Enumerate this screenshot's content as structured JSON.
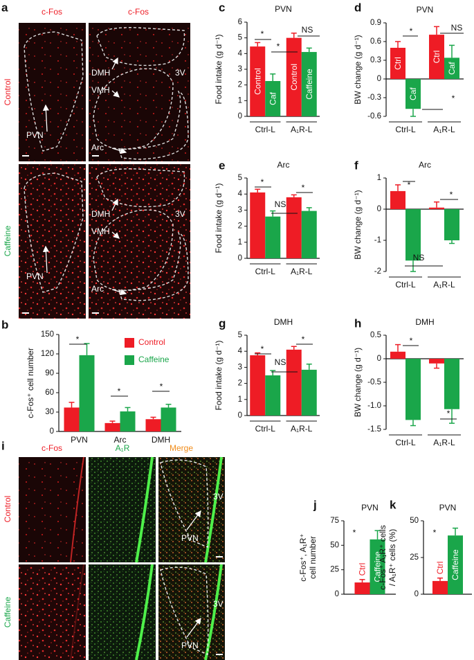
{
  "panel_a": {
    "panel": "a",
    "column_labels": [
      "c-Fos",
      "c-Fos"
    ],
    "row_labels": [
      "Control",
      "Caffeine"
    ],
    "images": [
      {
        "labels": [
          "PVN"
        ]
      },
      {
        "labels": [
          "DMH",
          "VMH",
          "3V",
          "Arc"
        ]
      },
      {
        "labels": [
          "PVN"
        ]
      },
      {
        "labels": [
          "DMH",
          "VMH",
          "3V",
          "Arc"
        ]
      }
    ]
  },
  "panel_i": {
    "panel": "i",
    "column_labels": [
      "c-Fos",
      "A₁R",
      "Merge"
    ],
    "row_labels": [
      "Control",
      "Caffeine"
    ],
    "merge_images": [
      {
        "labels": [
          "3V",
          "PVN"
        ]
      },
      {
        "labels": [
          "3V",
          "PVN"
        ]
      }
    ]
  },
  "chart_data": [
    {
      "type": "bar",
      "panel": "b",
      "ylabel": [
        "c-Fos⁺ cell number"
      ],
      "categories": [
        "PVN",
        "Arc",
        "DMH"
      ],
      "series": [
        {
          "name": "Control",
          "color": "#ee1c25",
          "values": [
            37,
            13,
            19
          ],
          "errors": [
            8,
            3,
            3
          ]
        },
        {
          "name": "Caffeine",
          "color": "#1aa64a",
          "values": [
            118,
            31,
            37
          ],
          "errors": [
            18,
            6,
            5
          ]
        }
      ],
      "ylim": [
        0,
        150
      ],
      "yticks": [
        0,
        30,
        60,
        90,
        120,
        150
      ],
      "annotations": [
        "*",
        "*",
        "*"
      ]
    },
    {
      "type": "bar",
      "panel": "c",
      "title": "PVN",
      "ylabel": [
        "Food intake (g d⁻¹)"
      ],
      "categories": [
        "Ctrl-L",
        "A₁R-L"
      ],
      "series": [
        {
          "color": "#ee1c25",
          "values": [
            4.45,
            5.0
          ],
          "errors": [
            0.25,
            0.3
          ],
          "bar_labels": [
            "Control",
            "Control"
          ]
        },
        {
          "color": "#1aa64a",
          "values": [
            2.25,
            4.1
          ],
          "errors": [
            0.45,
            0.25
          ],
          "bar_labels": [
            "Caf",
            "Caffeine"
          ]
        }
      ],
      "ylim": [
        0,
        6
      ],
      "yticks": [
        0,
        1,
        2,
        3,
        4,
        5,
        6
      ],
      "annotations": [
        "*",
        "*",
        "NS"
      ]
    },
    {
      "type": "bar",
      "panel": "d",
      "title": "PVN",
      "ylabel": [
        "BW change (g d⁻¹)"
      ],
      "categories": [
        "Ctrl-L",
        "A₁R-L"
      ],
      "series": [
        {
          "color": "#ee1c25",
          "values": [
            0.5,
            0.71
          ],
          "errors": [
            0.1,
            0.13
          ],
          "bar_labels": [
            "Ctrl",
            "Ctrl"
          ]
        },
        {
          "color": "#1aa64a",
          "values": [
            -0.48,
            0.34
          ],
          "errors": [
            0.12,
            0.2
          ],
          "bar_labels": [
            "Caf",
            "Caf"
          ]
        }
      ],
      "ylim": [
        -0.6,
        0.9
      ],
      "yticks": [
        -0.6,
        -0.3,
        0,
        0.3,
        0.6,
        0.9
      ],
      "annotations": [
        "*",
        "NS",
        "*"
      ]
    },
    {
      "type": "bar",
      "panel": "e",
      "title": "Arc",
      "ylabel": [
        "Food intake (g d⁻¹)"
      ],
      "categories": [
        "Ctrl-L",
        "A₁R-L"
      ],
      "series": [
        {
          "color": "#ee1c25",
          "values": [
            4.1,
            3.8
          ],
          "errors": [
            0.2,
            0.15
          ]
        },
        {
          "color": "#1aa64a",
          "values": [
            2.6,
            2.95
          ],
          "errors": [
            0.35,
            0.2
          ]
        }
      ],
      "ylim": [
        0,
        5
      ],
      "yticks": [
        0,
        1,
        2,
        3,
        4,
        5
      ],
      "annotations": [
        "*",
        "NS",
        "*"
      ]
    },
    {
      "type": "bar",
      "panel": "f",
      "title": "Arc",
      "ylabel": [
        "BW change (g d⁻¹)"
      ],
      "categories": [
        "Ctrl-L",
        "A₁R-L"
      ],
      "series": [
        {
          "color": "#ee1c25",
          "values": [
            0.58,
            0.05
          ],
          "errors": [
            0.2,
            0.18
          ]
        },
        {
          "color": "#1aa64a",
          "values": [
            -1.65,
            -1.0
          ],
          "errors": [
            0.35,
            0.1
          ]
        }
      ],
      "ylim": [
        -2,
        1
      ],
      "yticks": [
        -2,
        -1,
        0,
        1
      ],
      "annotations": [
        "*",
        "*",
        "NS"
      ]
    },
    {
      "type": "bar",
      "panel": "g",
      "title": "DMH",
      "ylabel": [
        "Food intake (g d⁻¹)"
      ],
      "categories": [
        "Ctrl-L",
        "A₁R-L"
      ],
      "series": [
        {
          "color": "#ee1c25",
          "values": [
            3.75,
            4.1
          ],
          "errors": [
            0.15,
            0.2
          ]
        },
        {
          "color": "#1aa64a",
          "values": [
            2.5,
            2.85
          ],
          "errors": [
            0.3,
            0.35
          ]
        }
      ],
      "ylim": [
        0,
        5
      ],
      "yticks": [
        0,
        1,
        2,
        3,
        4,
        5
      ],
      "annotations": [
        "*",
        "NS",
        "*"
      ]
    },
    {
      "type": "bar",
      "panel": "h",
      "title": "DMH",
      "ylabel": [
        "BW change (g d⁻¹)"
      ],
      "categories": [
        "Ctrl-L",
        "A₁R-L"
      ],
      "series": [
        {
          "color": "#ee1c25",
          "values": [
            0.15,
            -0.1
          ],
          "errors": [
            0.15,
            0.1
          ]
        },
        {
          "color": "#1aa64a",
          "values": [
            -1.3,
            -1.07
          ],
          "errors": [
            0.12,
            0.3
          ]
        }
      ],
      "ylim": [
        -1.5,
        0.5
      ],
      "yticks": [
        -1.5,
        {
          "value": -1,
          "label": "-1.0"
        },
        -0.5,
        0,
        0.5
      ],
      "annotations": [
        "*",
        "*"
      ]
    },
    {
      "type": "bar",
      "panel": "j",
      "title": "PVN",
      "ylabel": [
        "c-Fos⁺, A₁R⁺",
        "cell number"
      ],
      "categories": [
        null
      ],
      "series": [
        {
          "color": "#ee1c25",
          "values": [
            12
          ],
          "errors": [
            3
          ],
          "bar_labels": [
            "Ctrl"
          ]
        },
        {
          "color": "#1aa64a",
          "values": [
            56
          ],
          "errors": [
            9
          ],
          "bar_labels": [
            "Caffeine"
          ]
        }
      ],
      "ylim": [
        0,
        75
      ],
      "yticks": [
        0,
        25,
        50,
        75
      ],
      "annotations": [
        "*"
      ]
    },
    {
      "type": "bar",
      "panel": "k",
      "title": "PVN",
      "ylabel": [
        "c-Fos⁺ A₁R⁺ cells",
        "/ A₁R⁺ cells (%)"
      ],
      "categories": [
        null
      ],
      "series": [
        {
          "color": "#ee1c25",
          "values": [
            9
          ],
          "errors": [
            2
          ],
          "bar_labels": [
            "Ctrl"
          ]
        },
        {
          "color": "#1aa64a",
          "values": [
            40
          ],
          "errors": [
            5
          ],
          "bar_labels": [
            "Caffeine"
          ]
        }
      ],
      "ylim": [
        0,
        50
      ],
      "yticks": [
        0,
        25,
        50
      ],
      "annotations": [
        "*"
      ]
    }
  ]
}
